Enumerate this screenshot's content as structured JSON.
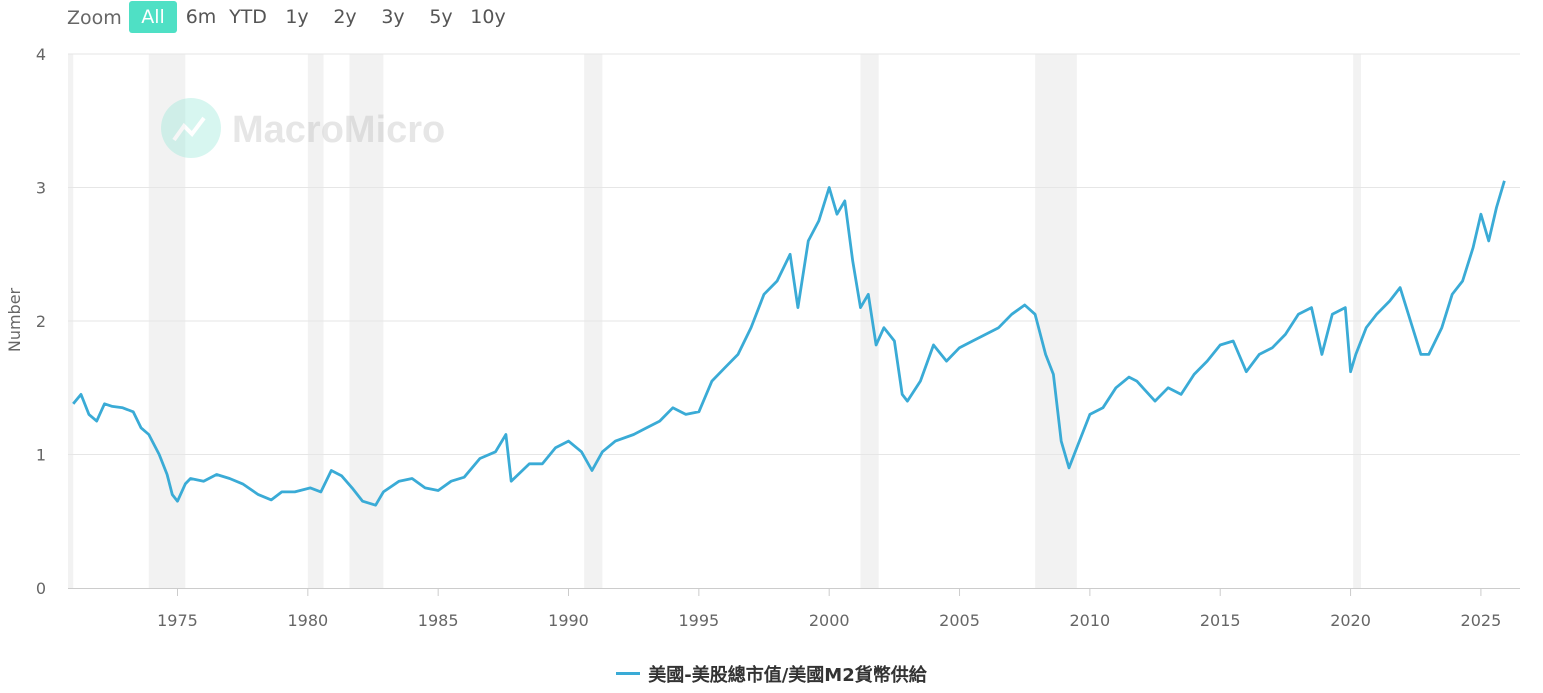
{
  "zoom": {
    "label": "Zoom",
    "buttons": [
      {
        "label": "All",
        "active": true
      },
      {
        "label": "6m",
        "active": false
      },
      {
        "label": "YTD",
        "active": false
      },
      {
        "label": "1y",
        "active": false
      },
      {
        "label": "2y",
        "active": false
      },
      {
        "label": "3y",
        "active": false
      },
      {
        "label": "5y",
        "active": false
      },
      {
        "label": "10y",
        "active": false
      }
    ]
  },
  "watermark": "MacroMicro",
  "colors": {
    "line": "#3aabd6",
    "band": "#f2f2f2",
    "grid": "#e6e6e6",
    "axis_text": "#666666",
    "accent": "#4fe0c5"
  },
  "chart_data": {
    "type": "line",
    "title": "",
    "xlabel": "",
    "ylabel": "Number",
    "xlim": [
      1970.8,
      2026.5
    ],
    "ylim": [
      0,
      4
    ],
    "yticks": [
      0,
      1,
      2,
      3,
      4
    ],
    "xticks": [
      1975,
      1980,
      1985,
      1990,
      1995,
      2000,
      2005,
      2010,
      2015,
      2020,
      2025
    ],
    "grid": true,
    "legend_position": "bottom-center",
    "recession_bands": [
      [
        1970.8,
        1971.0
      ],
      [
        1973.9,
        1975.3
      ],
      [
        1980.0,
        1980.6
      ],
      [
        1981.6,
        1982.9
      ],
      [
        1990.6,
        1991.3
      ],
      [
        2001.2,
        2001.9
      ],
      [
        2007.9,
        2009.5
      ],
      [
        2020.1,
        2020.4
      ]
    ],
    "series": [
      {
        "name": "美國-美股總市值/美國M2貨幣供給",
        "x": [
          1971.0,
          1971.3,
          1971.6,
          1971.9,
          1972.2,
          1972.5,
          1972.9,
          1973.3,
          1973.6,
          1973.9,
          1974.3,
          1974.6,
          1974.8,
          1975.0,
          1975.3,
          1975.5,
          1976.0,
          1976.5,
          1977.0,
          1977.5,
          1978.1,
          1978.6,
          1979.0,
          1979.5,
          1980.1,
          1980.5,
          1980.9,
          1981.3,
          1981.7,
          1982.1,
          1982.6,
          1982.9,
          1983.5,
          1984.0,
          1984.5,
          1985.0,
          1985.5,
          1986.0,
          1986.6,
          1987.2,
          1987.6,
          1987.8,
          1988.5,
          1989.0,
          1989.5,
          1990.0,
          1990.5,
          1990.9,
          1991.3,
          1991.8,
          1992.5,
          1993.0,
          1993.5,
          1994.0,
          1994.5,
          1995.0,
          1995.5,
          1996.0,
          1996.5,
          1997.0,
          1997.5,
          1998.0,
          1998.5,
          1998.8,
          1999.2,
          1999.6,
          2000.0,
          2000.3,
          2000.6,
          2000.9,
          2001.2,
          2001.5,
          2001.8,
          2002.1,
          2002.5,
          2002.8,
          2003.0,
          2003.5,
          2004.0,
          2004.5,
          2005.0,
          2005.5,
          2006.0,
          2006.5,
          2007.0,
          2007.5,
          2007.9,
          2008.3,
          2008.6,
          2008.9,
          2009.2,
          2009.5,
          2010.0,
          2010.5,
          2011.0,
          2011.5,
          2011.8,
          2012.5,
          2013.0,
          2013.5,
          2014.0,
          2014.5,
          2015.0,
          2015.5,
          2016.0,
          2016.5,
          2017.0,
          2017.5,
          2018.0,
          2018.5,
          2018.9,
          2019.3,
          2019.8,
          2020.0,
          2020.2,
          2020.6,
          2021.0,
          2021.5,
          2021.9,
          2022.3,
          2022.7,
          2023.0,
          2023.5,
          2023.9,
          2024.3,
          2024.7,
          2025.0,
          2025.3,
          2025.6,
          2025.9
        ],
        "y": [
          1.38,
          1.45,
          1.3,
          1.25,
          1.38,
          1.36,
          1.35,
          1.32,
          1.2,
          1.15,
          1.0,
          0.85,
          0.7,
          0.65,
          0.78,
          0.82,
          0.8,
          0.85,
          0.82,
          0.78,
          0.7,
          0.66,
          0.72,
          0.72,
          0.75,
          0.72,
          0.88,
          0.84,
          0.75,
          0.65,
          0.62,
          0.72,
          0.8,
          0.82,
          0.75,
          0.73,
          0.8,
          0.83,
          0.97,
          1.02,
          1.15,
          0.8,
          0.93,
          0.93,
          1.05,
          1.1,
          1.02,
          0.88,
          1.02,
          1.1,
          1.15,
          1.2,
          1.25,
          1.35,
          1.3,
          1.32,
          1.55,
          1.65,
          1.75,
          1.95,
          2.2,
          2.3,
          2.5,
          2.1,
          2.6,
          2.75,
          3.0,
          2.8,
          2.9,
          2.45,
          2.1,
          2.2,
          1.82,
          1.95,
          1.85,
          1.45,
          1.4,
          1.55,
          1.82,
          1.7,
          1.8,
          1.85,
          1.9,
          1.95,
          2.05,
          2.12,
          2.05,
          1.75,
          1.6,
          1.1,
          0.9,
          1.05,
          1.3,
          1.35,
          1.5,
          1.58,
          1.55,
          1.4,
          1.5,
          1.45,
          1.6,
          1.7,
          1.82,
          1.85,
          1.62,
          1.75,
          1.8,
          1.9,
          2.05,
          2.1,
          1.75,
          2.05,
          2.1,
          1.62,
          1.75,
          1.95,
          2.05,
          2.15,
          2.25,
          2.0,
          1.75,
          1.75,
          1.95,
          2.2,
          2.3,
          2.55,
          2.8,
          2.6,
          2.85,
          3.05
        ]
      }
    ]
  }
}
